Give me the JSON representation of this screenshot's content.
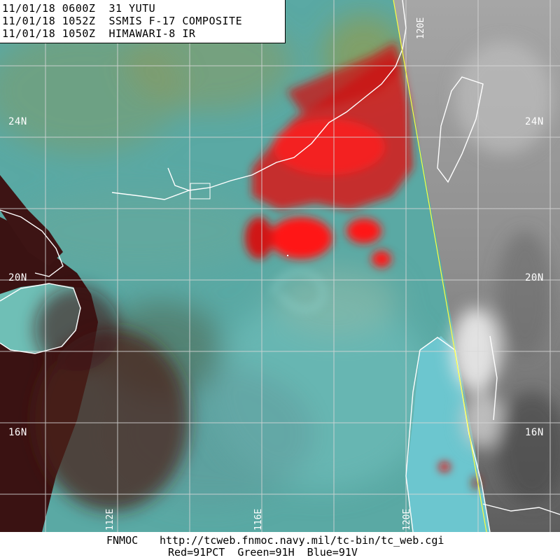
{
  "header": {
    "line1": "11/01/18 0600Z  31 YUTU",
    "line2": "11/01/18 1052Z  SSMIS F-17 COMPOSITE",
    "line3": "11/01/18 1050Z  HIMAWARI-8 IR"
  },
  "lat_labels": [
    "24N",
    "20N",
    "16N"
  ],
  "lon_labels": [
    "112E",
    "116E",
    "120E"
  ],
  "footer": {
    "credit": "FNMOC",
    "url": "http://tcweb.fnmoc.navy.mil/tc-bin/tc_web.cgi",
    "channels": "Red=91PCT  Green=91H  Blue=91V"
  },
  "colors": {
    "ocean_cyan": "#5fbfb8",
    "land_dark": "#3a1212",
    "convection_red": "#ff1010",
    "ir_gray": "#9a9a9a",
    "grid": "#d8d8d8",
    "coast": "#ffffff",
    "swath_edge": "#ffff40"
  }
}
